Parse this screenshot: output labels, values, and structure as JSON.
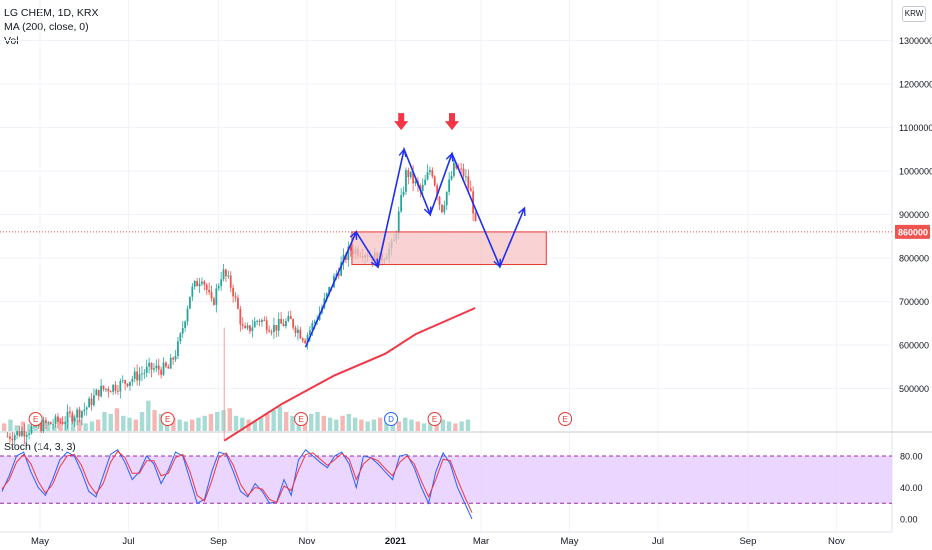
{
  "header": {
    "symbol_line": "LG CHEM, 1D, KRX",
    "ma_line": "MA (200, close, 0)",
    "vol_line": "Vol",
    "currency": "KRW"
  },
  "stoch": {
    "label": "Stoch (14, 3, 3)",
    "levels": [
      "80.00",
      "40.00",
      "0.00"
    ]
  },
  "colors": {
    "up": "#26a69a",
    "down": "#ef5350",
    "ma": "#f23645",
    "stoch_k": "#2962ff",
    "stoch_d": "#f23645",
    "drawing": "#1e2ff0",
    "zone_fill": "#f7c3c4",
    "zone_border": "#e53935",
    "band_fill": "#e6ccff",
    "earnings": "#e53935",
    "dividend": "#2962ff"
  },
  "chart_data": [
    {
      "type": "candlestick",
      "title": "LG CHEM, 1D, KRX",
      "y_axis": {
        "range": [
          380000,
          1350000
        ],
        "ticks": [
          "1300000",
          "1200000",
          "1100000",
          "1000000",
          "900000",
          "800000",
          "700000",
          "600000",
          "500000"
        ],
        "tick_values": [
          1300000,
          1200000,
          1100000,
          1000000,
          900000,
          800000,
          700000,
          600000,
          500000
        ]
      },
      "x_axis": {
        "ticks": [
          "May",
          "Jul",
          "Sep",
          "Nov",
          "2021",
          "Mar",
          "May",
          "Jul",
          "Sep",
          "Nov"
        ],
        "tick_dates": [
          "2020-05-01",
          "2020-07-01",
          "2020-09-01",
          "2020-11-01",
          "2021-01-01",
          "2021-03-01",
          "2021-05-01",
          "2021-07-01",
          "2021-09-01",
          "2021-11-01"
        ]
      },
      "last_price_label": "860000",
      "last_price": 860000,
      "price_path": [
        [
          "2020-04-08",
          390000
        ],
        [
          "2020-04-28",
          412000
        ],
        [
          "2020-05-15",
          425000
        ],
        [
          "2020-06-01",
          455000
        ],
        [
          "2020-06-10",
          495000
        ],
        [
          "2020-06-25",
          510000
        ],
        [
          "2020-07-15",
          545000
        ],
        [
          "2020-07-28",
          545000
        ],
        [
          "2020-08-04",
          600000
        ],
        [
          "2020-08-12",
          720000
        ],
        [
          "2020-08-20",
          760000
        ],
        [
          "2020-08-27",
          690000
        ],
        [
          "2020-09-03",
          770000
        ],
        [
          "2020-09-10",
          730000
        ],
        [
          "2020-09-18",
          625000
        ],
        [
          "2020-09-28",
          660000
        ],
        [
          "2020-10-08",
          640000
        ],
        [
          "2020-10-20",
          655000
        ],
        [
          "2020-10-30",
          615000
        ],
        [
          "2020-11-10",
          680000
        ],
        [
          "2020-11-20",
          760000
        ],
        [
          "2020-11-30",
          820000
        ],
        [
          "2020-12-10",
          815000
        ],
        [
          "2020-12-20",
          795000
        ],
        [
          "2020-12-30",
          830000
        ],
        [
          "2021-01-08",
          1000000
        ],
        [
          "2021-01-18",
          950000
        ],
        [
          "2021-01-25",
          1010000
        ],
        [
          "2021-02-01",
          910000
        ],
        [
          "2021-02-10",
          1010000
        ],
        [
          "2021-02-17",
          990000
        ],
        [
          "2021-02-22",
          940000
        ],
        [
          "2021-02-25",
          860000
        ]
      ],
      "moving_average": {
        "name": "MA (200, close, 0)",
        "points": [
          [
            "2020-09-05",
            380000
          ],
          [
            "2020-10-15",
            465000
          ],
          [
            "2020-11-20",
            530000
          ],
          [
            "2020-12-25",
            580000
          ],
          [
            "2021-01-15",
            625000
          ],
          [
            "2021-02-25",
            685000
          ]
        ]
      },
      "volume": {
        "label": "Vol",
        "relative_heights": [
          0.2,
          0.3,
          0.15,
          0.25,
          0.18,
          0.22,
          0.3,
          0.2,
          0.15,
          0.35,
          0.25,
          0.4,
          0.3,
          0.2,
          0.25,
          0.3,
          0.5,
          0.45,
          0.6,
          0.4,
          0.35,
          0.3,
          0.5,
          0.8,
          0.55,
          0.45,
          0.4,
          0.35,
          0.3,
          0.25,
          0.3,
          0.35,
          0.4,
          0.45,
          0.5,
          0.55,
          0.6,
          0.4,
          0.35,
          0.3,
          0.25,
          0.35,
          0.45,
          0.55,
          0.65,
          0.5,
          0.4,
          0.3,
          0.35,
          0.45,
          0.5,
          0.4,
          0.35,
          0.3,
          0.4,
          0.45,
          0.35,
          0.3,
          0.25,
          0.3,
          0.35,
          0.4,
          0.3,
          0.25,
          0.35,
          0.3,
          0.25,
          0.2,
          0.3,
          0.35,
          0.3,
          0.25,
          0.2,
          0.25,
          0.3
        ]
      },
      "events": [
        {
          "kind": "earnings",
          "label": "E",
          "date": "2020-04-28"
        },
        {
          "kind": "earnings",
          "label": "E",
          "date": "2020-07-28"
        },
        {
          "kind": "earnings",
          "label": "E",
          "date": "2020-10-28"
        },
        {
          "kind": "dividend",
          "label": "D",
          "date": "2020-12-29"
        },
        {
          "kind": "earnings",
          "label": "E",
          "date": "2021-01-28"
        },
        {
          "kind": "earnings",
          "label": "E",
          "date": "2021-04-28"
        }
      ],
      "drawings": {
        "zone": {
          "from": "2020-12-02",
          "to": "2021-04-15",
          "top": 860000,
          "bottom": 785000
        },
        "pattern_path": [
          [
            "2020-10-31",
            595000
          ],
          [
            "2020-12-05",
            860000
          ],
          [
            "2020-12-20",
            780000
          ],
          [
            "2021-01-07",
            1050000
          ],
          [
            "2021-01-25",
            900000
          ],
          [
            "2021-02-09",
            1040000
          ],
          [
            "2021-03-14",
            780000
          ],
          [
            "2021-03-31",
            915000
          ]
        ],
        "signal_arrows": [
          {
            "date": "2021-01-05",
            "price": 1110000
          },
          {
            "date": "2021-02-09",
            "price": 1110000
          }
        ]
      }
    },
    {
      "type": "line",
      "title": "Stoch (14, 3, 3)",
      "y_axis": {
        "range": [
          -5,
          100
        ],
        "ticks": [
          "80.00",
          "40.00",
          "0.00"
        ],
        "tick_values": [
          80,
          40,
          0
        ]
      },
      "band": [
        20,
        80
      ],
      "series": [
        {
          "name": "%K",
          "color": "#2962ff",
          "points": [
            [
              0,
              35
            ],
            [
              2,
              55
            ],
            [
              4,
              80
            ],
            [
              6,
              85
            ],
            [
              8,
              60
            ],
            [
              10,
              40
            ],
            [
              12,
              30
            ],
            [
              14,
              50
            ],
            [
              16,
              75
            ],
            [
              18,
              85
            ],
            [
              20,
              80
            ],
            [
              22,
              60
            ],
            [
              24,
              35
            ],
            [
              26,
              28
            ],
            [
              28,
              55
            ],
            [
              30,
              82
            ],
            [
              32,
              88
            ],
            [
              34,
              72
            ],
            [
              36,
              50
            ],
            [
              38,
              60
            ],
            [
              40,
              80
            ],
            [
              42,
              70
            ],
            [
              44,
              45
            ],
            [
              46,
              62
            ],
            [
              48,
              85
            ],
            [
              50,
              80
            ],
            [
              52,
              50
            ],
            [
              54,
              20
            ],
            [
              56,
              25
            ],
            [
              58,
              60
            ],
            [
              60,
              85
            ],
            [
              62,
              82
            ],
            [
              64,
              60
            ],
            [
              66,
              35
            ],
            [
              68,
              28
            ],
            [
              70,
              45
            ],
            [
              72,
              35
            ],
            [
              74,
              20
            ],
            [
              76,
              22
            ],
            [
              78,
              50
            ],
            [
              80,
              30
            ],
            [
              82,
              75
            ],
            [
              84,
              88
            ],
            [
              86,
              80
            ],
            [
              88,
              72
            ],
            [
              90,
              65
            ],
            [
              92,
              80
            ],
            [
              94,
              85
            ],
            [
              96,
              70
            ],
            [
              98,
              40
            ],
            [
              100,
              80
            ],
            [
              102,
              78
            ],
            [
              104,
              70
            ],
            [
              106,
              60
            ],
            [
              108,
              50
            ],
            [
              110,
              80
            ],
            [
              112,
              82
            ],
            [
              114,
              65
            ],
            [
              116,
              40
            ],
            [
              118,
              20
            ],
            [
              120,
              60
            ],
            [
              122,
              84
            ],
            [
              124,
              70
            ],
            [
              126,
              40
            ],
            [
              128,
              20
            ],
            [
              130,
              0
            ]
          ]
        },
        {
          "name": "%D",
          "color": "#f23645",
          "points": [
            [
              0,
              38
            ],
            [
              2,
              50
            ],
            [
              4,
              72
            ],
            [
              6,
              82
            ],
            [
              8,
              70
            ],
            [
              10,
              48
            ],
            [
              12,
              33
            ],
            [
              14,
              44
            ],
            [
              16,
              66
            ],
            [
              18,
              80
            ],
            [
              20,
              82
            ],
            [
              22,
              68
            ],
            [
              24,
              45
            ],
            [
              26,
              32
            ],
            [
              28,
              45
            ],
            [
              30,
              72
            ],
            [
              32,
              86
            ],
            [
              34,
              78
            ],
            [
              36,
              58
            ],
            [
              38,
              58
            ],
            [
              40,
              74
            ],
            [
              42,
              74
            ],
            [
              44,
              55
            ],
            [
              46,
              58
            ],
            [
              48,
              78
            ],
            [
              50,
              82
            ],
            [
              52,
              60
            ],
            [
              54,
              30
            ],
            [
              56,
              23
            ],
            [
              58,
              48
            ],
            [
              60,
              78
            ],
            [
              62,
              84
            ],
            [
              64,
              68
            ],
            [
              66,
              44
            ],
            [
              68,
              30
            ],
            [
              70,
              40
            ],
            [
              72,
              38
            ],
            [
              74,
              25
            ],
            [
              76,
              21
            ],
            [
              78,
              42
            ],
            [
              80,
              36
            ],
            [
              82,
              62
            ],
            [
              84,
              82
            ],
            [
              86,
              84
            ],
            [
              88,
              76
            ],
            [
              90,
              68
            ],
            [
              92,
              75
            ],
            [
              94,
              83
            ],
            [
              96,
              76
            ],
            [
              98,
              50
            ],
            [
              100,
              70
            ],
            [
              102,
              78
            ],
            [
              104,
              74
            ],
            [
              106,
              64
            ],
            [
              108,
              55
            ],
            [
              110,
              72
            ],
            [
              112,
              80
            ],
            [
              114,
              70
            ],
            [
              116,
              48
            ],
            [
              118,
              28
            ],
            [
              120,
              50
            ],
            [
              122,
              76
            ],
            [
              124,
              74
            ],
            [
              126,
              50
            ],
            [
              128,
              28
            ],
            [
              130,
              8
            ]
          ]
        }
      ]
    }
  ]
}
